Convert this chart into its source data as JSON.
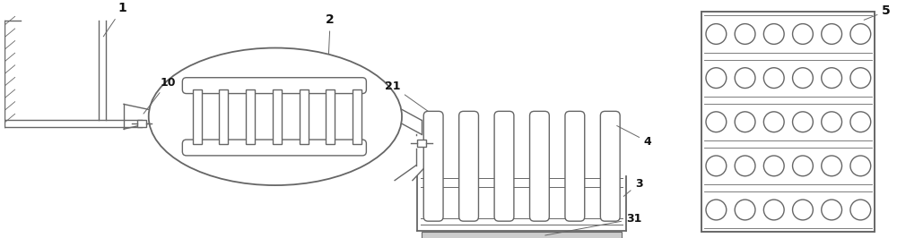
{
  "bg_color": "#ffffff",
  "line_color": "#666666",
  "label_color": "#111111",
  "fig_width": 10.0,
  "fig_height": 2.66,
  "dpi": 100
}
